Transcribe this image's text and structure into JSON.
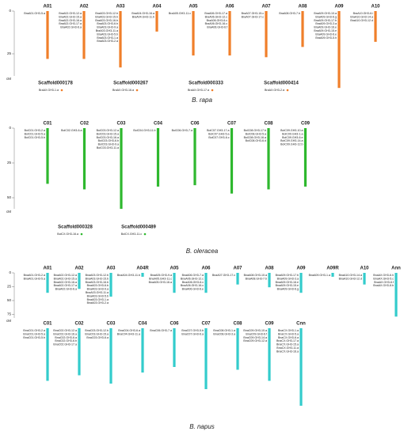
{
  "panels": [
    {
      "title": "B. rapa",
      "color": "#f07f2a",
      "scale": {
        "ticks": [
          0,
          25
        ],
        "unit": "cM"
      },
      "rows": [
        [
          {
            "name": "A01",
            "length": 28,
            "genes": [
              "BraA01.GH3-5.a"
            ]
          },
          {
            "name": "A02",
            "length": 28,
            "genes": [
              "BraA02.GH3-12.a",
              "BraA02.GH3-15.a",
              "BraA02.GH3-16.a",
              "BraA02.GH3-17.a",
              "BraA02.GH3-6.a"
            ]
          },
          {
            "name": "A03",
            "length": 33,
            "genes": [
              "BraA03.GH3-12.b",
              "BraA03.GH3-15.b",
              "BraA03.GH3-16.b",
              "BraA03.GH3-6.b",
              "BraA03.GH3-9.a",
              "BraA03.GH3-11.a",
              "BraA03.GH3-5.b",
              "BraA03.GH3-1.a",
              "BraA03.GH3-2.a"
            ]
          },
          {
            "name": "A04",
            "length": 12,
            "genes": [
              "BraA04.GH3-16.a",
              "BraA04.GH3-11.b"
            ]
          },
          {
            "name": "A05",
            "length": 26,
            "genes": [
              "BraA05.GH3-11.c"
            ]
          },
          {
            "name": "A06",
            "length": 26,
            "genes": [
              "BraA06.GH3-17.a",
              "BraA06.GH3-12.c",
              "BraA06.GH3-6.c",
              "BraA06.GH3-16.c",
              "BraA06.GH3-6.f"
            ]
          },
          {
            "name": "A07",
            "length": 27,
            "genes": [
              "BraA07.GH3-15.c",
              "BraA07.GH3-17.c"
            ]
          },
          {
            "name": "A08",
            "length": 21,
            "genes": [
              "BraA08.GH3-7.b"
            ]
          },
          {
            "name": "A09",
            "length": 45,
            "genes": [
              "BraA09.GH3-10.a",
              "BraA09.GH3-6.g",
              "BraA09.GH3-17.b",
              "BraA09.GH3-3.a",
              "BraA09.GH3-16.e",
              "BraA09.GH3-15.e",
              "BraA09.GH3-6.e",
              "BraA09.GH3-5.h"
            ]
          },
          {
            "name": "A10",
            "length": 18,
            "genes": [
              "BraA10.GH3-6.i",
              "BraA10.GH3-14.a",
              "BraA10.GH3-12.d"
            ]
          }
        ]
      ],
      "scaffolds": [
        {
          "name": "Scaffold000178",
          "genes": [
            "BraAX.GH3-1.a"
          ]
        },
        {
          "name": "Scaffold000267",
          "genes": [
            "BraAX.GH3-16.a"
          ]
        },
        {
          "name": "Scaffold000333",
          "genes": [
            "BraAX.GH3-17.a"
          ]
        },
        {
          "name": "Scaffold000414",
          "genes": [
            "BraAX.GH3-2.a"
          ]
        }
      ]
    },
    {
      "title": "B. oleracea",
      "color": "#2eb82e",
      "scale": {
        "ticks": [
          0,
          25,
          50
        ],
        "unit": "cM"
      },
      "rows": [
        [
          {
            "name": "C01",
            "length": 40,
            "genes": [
              "BolC01.GH3-2.a",
              "BolC01.GH3-5.a",
              "BolC01.GH3-5.b"
            ]
          },
          {
            "name": "C02",
            "length": 44,
            "genes": [
              "BolC02.GH3-6.a"
            ]
          },
          {
            "name": "C03",
            "length": 58,
            "genes": [
              "BolC03.GH3-12.a",
              "BolC03.GH3-15.a",
              "BolC03.GH3-16.a",
              "BolC03.GH3-6.b",
              "BolC03.GH3-9.a",
              "BolC03.GH3-11.a"
            ]
          },
          {
            "name": "C04",
            "length": 42,
            "genes": [
              "BolC04.GH3-11.b"
            ]
          },
          {
            "name": "C06",
            "length": 41,
            "genes": [
              "BolC06.GH3-7.a"
            ]
          },
          {
            "name": "C07",
            "length": 47,
            "genes": [
              "BolC07.GH3-17.a",
              "BolC07.GH3-5.a",
              "BolC07.GH3-6.c"
            ]
          },
          {
            "name": "C08",
            "length": 44,
            "genes": [
              "BolC08.GH3-17.b",
              "BolC08.GH3-5.a",
              "BolC08.GH3-16.a",
              "BolC08.GH3-6.d"
            ]
          },
          {
            "name": "C09",
            "length": 42,
            "genes": [
              "BolC09.GH3-10.a",
              "BolC09.GH3-1.a",
              "BolC09.GH3-6.e",
              "BolC09.GH3-14.a",
              "BolC09.GH3-12.b"
            ]
          }
        ]
      ],
      "scaffolds": [
        {
          "name": "Scaffold000328",
          "genes": [
            "BolCX.GH3-16.a"
          ]
        },
        {
          "name": "Scaffold000489",
          "genes": [
            "BolCX.GH3-11.c"
          ]
        }
      ]
    },
    {
      "title": "B. napus",
      "color": "#33cccc",
      "scale": {
        "ticks": [
          0,
          25,
          50,
          75
        ],
        "unit": "cM"
      },
      "rows": [
        [
          {
            "name": "A01",
            "length": 36,
            "genes": [
              "BnaA01.GH3-2.a",
              "BnaA01.GH3-5.a"
            ]
          },
          {
            "name": "A02",
            "length": 29,
            "genes": [
              "BnaA02.GH3-12.a",
              "BnaA02.GH3-15.a",
              "BnaA02.GH3-16.a",
              "BnaA02.GH3-17.a",
              "BnaA02.GH3-6.a"
            ]
          },
          {
            "name": "A03",
            "length": 43,
            "genes": [
              "BnaA03.GH3-12.b",
              "BnaA03.GH3-15.b",
              "BnaA03.GH3-16.b",
              "BnaA03.GH3-6.b",
              "BnaA03.GH3-9.a",
              "BnaA03.GH3-11.a",
              "BnaA03.GH3-5.b",
              "BnaA03.GH3-1.a",
              "BnaA03.GH3-2.a"
            ]
          },
          {
            "name": "A04R",
            "length": 7,
            "genes": [
              "BnaA04.GH3-11.b"
            ]
          },
          {
            "name": "A05",
            "length": 36,
            "genes": [
              "BnaA05.GH3-9.a",
              "BnaA05.GH3-11.c",
              "BnaA05.GH3-16.a"
            ]
          },
          {
            "name": "A06",
            "length": 36,
            "genes": [
              "BnaA06.GH3-7.a",
              "BnaA06.GH3-12.c",
              "BnaA06.GH3-6.c",
              "BnaA06.GH3-16.c",
              "BnaA06.GH3-6.e"
            ]
          },
          {
            "name": "A07",
            "length": 21,
            "genes": [
              "BnaA07.GH3-17.c"
            ]
          },
          {
            "name": "A08",
            "length": 26,
            "genes": [
              "BnaA08.GH3-10.a",
              "BnaA08.GH3-7.b"
            ]
          },
          {
            "name": "A09",
            "length": 36,
            "genes": [
              "BnaA09.GH3-17.b",
              "BnaA09.GH3-3.a",
              "BnaA09.GH3-16.e",
              "BnaA09.GH3-15.e",
              "BnaA09.GH3-6.g"
            ]
          },
          {
            "name": "A09R",
            "length": 7,
            "genes": [
              "BnaA09.GH3-1.a"
            ]
          },
          {
            "name": "A10",
            "length": 21,
            "genes": [
              "BnaA10.GH3-14.a",
              "BnaA10.GH3-12.d"
            ]
          },
          {
            "name": "Ann",
            "length": 79,
            "genes": [
              "BnaAX.GH3-6.h",
              "BnaAX.GH3-5.c",
              "BnaAX.GH3-6.f",
              "BnaAX.GH3-8.b"
            ]
          }
        ],
        [
          {
            "name": "C01",
            "length": 95,
            "genes": [
              "BnaC01.GH3-2.a",
              "BnaC01.GH3-5.a",
              "BnaC01.GH3-5.b"
            ]
          },
          {
            "name": "C02",
            "length": 85,
            "genes": [
              "BnaC02.GH3-12.a",
              "BnaC02.GH3-16.a",
              "BnaC02.GH3-6.a",
              "BnaC02.GH3-6.b",
              "BnaC02.GH3-17.a"
            ]
          },
          {
            "name": "C03",
            "length": 100,
            "genes": [
              "BnaC03.GH3-12.b",
              "BnaC03.GH3-15.a",
              "BnaC03.GH3-6.a"
            ]
          },
          {
            "name": "C04",
            "length": 80,
            "genes": [
              "BnaC04.GH3-6.a",
              "BnaC04.GH3-11.a"
            ]
          },
          {
            "name": "C06",
            "length": 70,
            "genes": [
              "BnaC06.GH3-7.a"
            ]
          },
          {
            "name": "C07",
            "length": 110,
            "genes": [
              "BnaC07.GH3-5.b",
              "BnaC07.GH3-6.a"
            ]
          },
          {
            "name": "C08",
            "length": 75,
            "genes": [
              "BnaC08.GH3-1.a",
              "BnaC08.GH3-3.a"
            ]
          },
          {
            "name": "C09",
            "length": 95,
            "genes": [
              "BnaC09.GH3-10.a",
              "BnaC09.GH3-6.f",
              "BnaC09.GH3-14.a",
              "BnaC09.GH3-12.a"
            ]
          },
          {
            "name": "Cnn",
            "length": 140,
            "genes": [
              "BnaCX.GH3-1.a",
              "BnaCX.GH3-5.a",
              "BnaCX.GH3-6.a",
              "BnaCX.GH3-17.a",
              "BnaCX.GH3-15.a",
              "BnaCX.GH3-11.a",
              "BnaCX.GH3-16.a"
            ]
          }
        ]
      ],
      "scaffolds": []
    }
  ]
}
